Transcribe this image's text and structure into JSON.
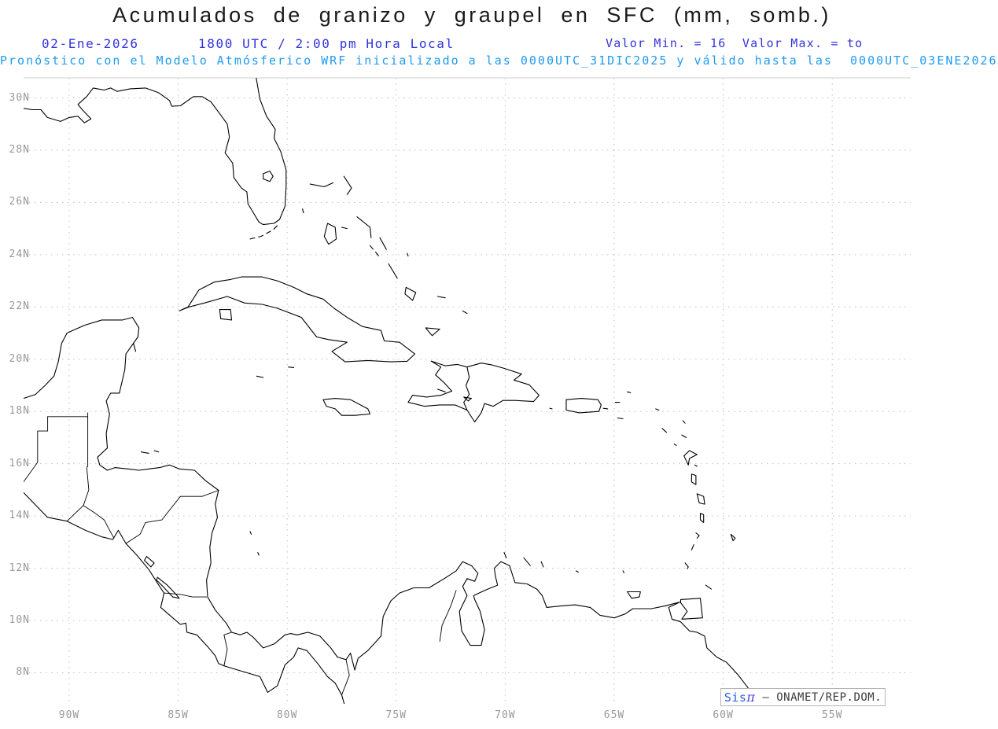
{
  "header": {
    "title": "Acumulados de granizo y graupel en SFC (mm, somb.)",
    "date": "02-Ene-2026",
    "time": "1800 UTC / 2:00 pm Hora Local",
    "minmax": "Valor Min. = 16  Valor Max. = to",
    "forecast_line": "Pronóstico con el Modelo Atmósferico WRF inicializado a las 0000UTC_31DIC2025 y válido hasta las  0000UTC_03ENE2026"
  },
  "map": {
    "lat_ticks": [
      "30N",
      "28N",
      "26N",
      "24N",
      "22N",
      "20N",
      "18N",
      "16N",
      "14N",
      "12N",
      "10N",
      "8N"
    ],
    "lat_values": [
      30,
      28,
      26,
      24,
      22,
      20,
      18,
      16,
      14,
      12,
      10,
      8
    ],
    "lon_ticks": [
      "90W",
      "85W",
      "80W",
      "75W",
      "70W",
      "65W",
      "60W",
      "55W"
    ],
    "lon_values": [
      -90,
      -85,
      -80,
      -75,
      -70,
      -65,
      -60,
      -55
    ]
  },
  "attribution": {
    "sis": "Sis",
    "pi": "π",
    "separator": " – ",
    "org": "ONAMET/REP.DOM."
  },
  "colors": {
    "title": "#1a1a1a",
    "header_blue": "#3333dd",
    "forecast_blue": "#1e9bf0",
    "tick_gray": "#999999",
    "grid_gray": "#c0c0c0",
    "frame_gray": "#cccccc",
    "coastline": "#000000",
    "sis_blue": "#2e5bea",
    "pi_blue": "#4a3fe8"
  }
}
